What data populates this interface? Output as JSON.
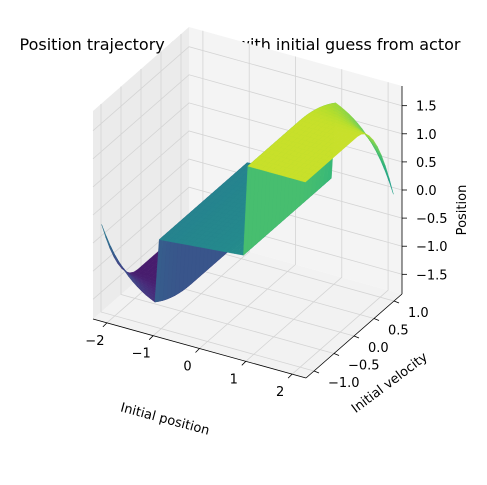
{
  "chart_data": {
    "type": "surface3d",
    "title": "Position trajectory of OCPs with initial guess from actor",
    "xlabel": "Initial position",
    "ylabel": "Initial velocity",
    "zlabel": "Position",
    "xlim": [
      -2.3,
      2.3
    ],
    "ylim": [
      -1.2,
      1.2
    ],
    "zlim": [
      -1.85,
      1.85
    ],
    "x_ticks": [
      "−2",
      "−1",
      "0",
      "1",
      "2"
    ],
    "y_ticks": [
      "−1.0",
      "−0.5",
      "0.0",
      "0.5",
      "1.0"
    ],
    "z_ticks": [
      "−1.5",
      "−1.0",
      "−0.5",
      "0.0",
      "0.5",
      "1.0",
      "1.5"
    ],
    "colormap": "viridis",
    "grid": true,
    "surface_shape": "three plateaus: about −1.57 for x < −1.05, about −0.05 for −1.05 < x < 0.95, about +1.55 for x > 0.95; outer plateaus curve toward the centre at high |velocity|; interleaved vertical steps at the transitions"
  }
}
